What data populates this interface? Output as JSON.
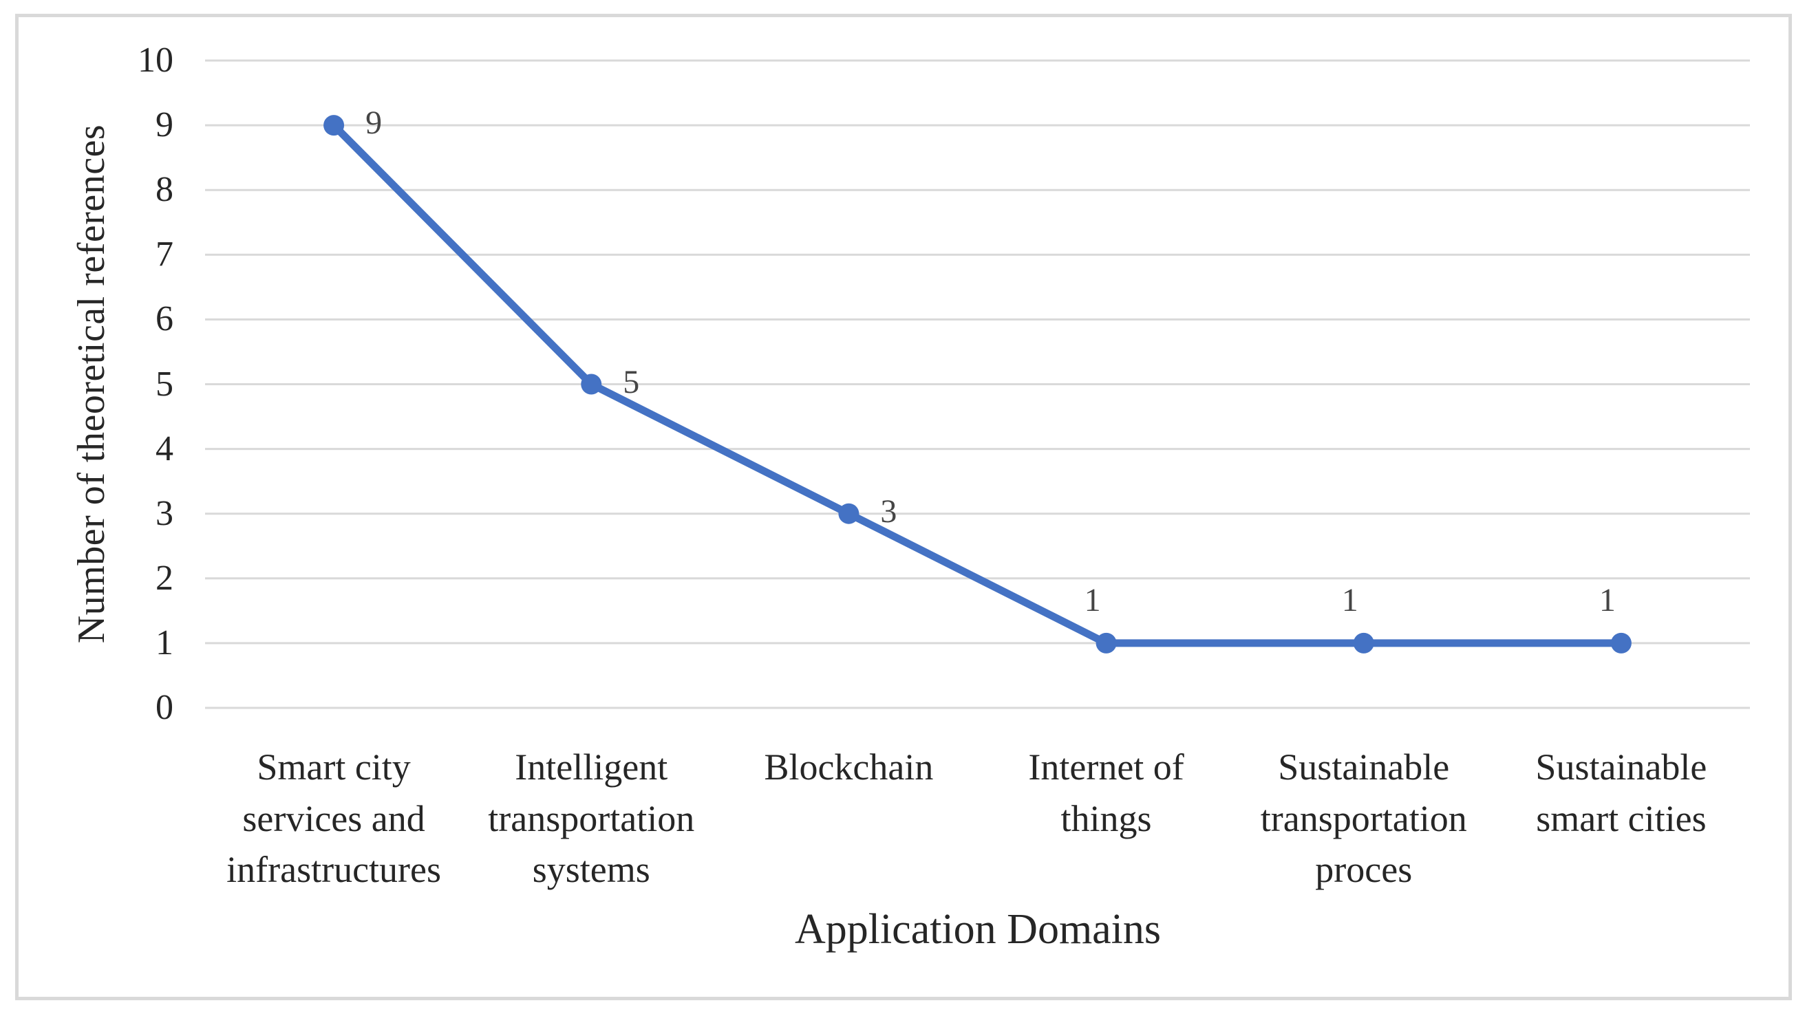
{
  "chart_data": {
    "type": "line",
    "title": "",
    "xlabel": "Application Domains",
    "ylabel": "Number of theoretical references",
    "categories": [
      "Smart city services and infrastructures",
      "Intelligent transportation systems",
      "Blockchain",
      "Internet of things",
      "Sustainable transportation proces",
      "Sustainable smart cities"
    ],
    "categories_display": [
      [
        "Smart city",
        "services and",
        "infrastructures"
      ],
      [
        "Intelligent",
        "transportation",
        "systems"
      ],
      [
        "Blockchain"
      ],
      [
        "Internet of",
        "things"
      ],
      [
        "Sustainable",
        "transportation",
        "proces"
      ],
      [
        "Sustainable",
        "smart cities"
      ]
    ],
    "values": [
      9,
      5,
      3,
      1,
      1,
      1
    ],
    "data_labels": [
      "9",
      "5",
      "3",
      "1",
      "1",
      "1"
    ],
    "data_label_positions": [
      "right",
      "right",
      "right",
      "above",
      "above",
      "above"
    ],
    "ylim": [
      0,
      10
    ],
    "yticks": [
      0,
      1,
      2,
      3,
      4,
      5,
      6,
      7,
      8,
      9,
      10
    ],
    "grid": "horizontal-on",
    "legend": "none",
    "line_color": "#4472C4",
    "marker": "circle",
    "gridline_color": "#D9D9D9",
    "frame_border_color": "#D9D9D9",
    "axis_text_color": "#262626",
    "data_label_color": "#454545"
  }
}
